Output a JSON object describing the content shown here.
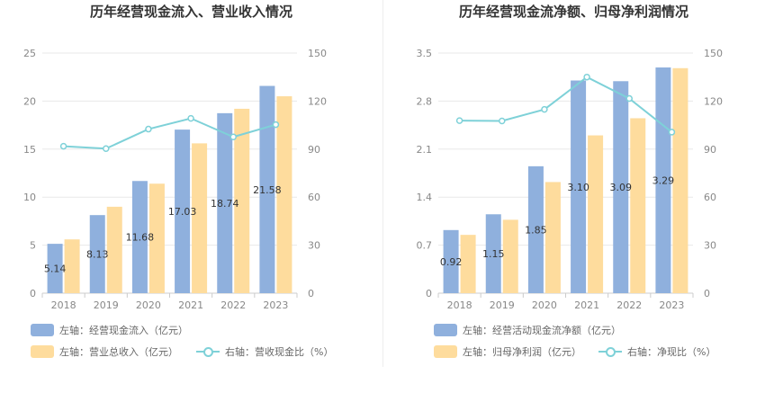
{
  "chart_data": [
    {
      "type": "bar",
      "title": "历年经营现金流入、营业收入情况",
      "categories": [
        "2018",
        "2019",
        "2020",
        "2021",
        "2022",
        "2023"
      ],
      "left_ticks": [
        "0",
        "5",
        "10",
        "15",
        "20",
        "25"
      ],
      "right_ticks": [
        "0",
        "30",
        "60",
        "90",
        "120",
        "150"
      ],
      "ylim_left": [
        0,
        25
      ],
      "ylim_right": [
        0,
        150
      ],
      "series": [
        {
          "name": "左轴：经营现金流入（亿元）",
          "axis": "left",
          "kind": "bar",
          "color": "#8fb0dd",
          "values": [
            5.14,
            8.13,
            11.68,
            17.03,
            18.74,
            21.58
          ],
          "labels": [
            "5.14",
            "8.13",
            "11.68",
            "17.03",
            "18.74",
            "21.58"
          ]
        },
        {
          "name": "左轴：营业总收入（亿元）",
          "axis": "left",
          "kind": "bar",
          "color": "#fedc9d",
          "values": [
            5.6,
            9.0,
            11.4,
            15.6,
            19.2,
            20.5
          ]
        },
        {
          "name": "右轴：营收现金比（%）",
          "axis": "right",
          "kind": "line",
          "color": "#7ed1d8",
          "values": [
            91.8,
            90.3,
            102.5,
            109.2,
            97.6,
            105.3
          ]
        }
      ]
    },
    {
      "type": "bar",
      "title": "历年经营现金流净额、归母净利润情况",
      "categories": [
        "2018",
        "2019",
        "2020",
        "2021",
        "2022",
        "2023"
      ],
      "left_ticks": [
        "0",
        "0.7",
        "1.4",
        "2.1",
        "2.8",
        "3.5"
      ],
      "right_ticks": [
        "0",
        "30",
        "60",
        "90",
        "120",
        "150"
      ],
      "ylim_left": [
        0,
        3.5
      ],
      "ylim_right": [
        0,
        150
      ],
      "series": [
        {
          "name": "左轴：经营活动现金流净额（亿元）",
          "axis": "left",
          "kind": "bar",
          "color": "#8fb0dd",
          "values": [
            0.92,
            1.15,
            1.85,
            3.1,
            3.09,
            3.29
          ],
          "labels": [
            "0.92",
            "1.15",
            "1.85",
            "3.10",
            "3.09",
            "3.29"
          ]
        },
        {
          "name": "左轴：归母净利润（亿元）",
          "axis": "left",
          "kind": "bar",
          "color": "#fedc9d",
          "values": [
            0.85,
            1.07,
            1.62,
            2.3,
            2.55,
            3.28
          ]
        },
        {
          "name": "右轴：净现比（%）",
          "axis": "right",
          "kind": "line",
          "color": "#7ed1d8",
          "values": [
            107.8,
            107.6,
            114.8,
            135.0,
            121.6,
            100.6
          ]
        }
      ]
    }
  ]
}
